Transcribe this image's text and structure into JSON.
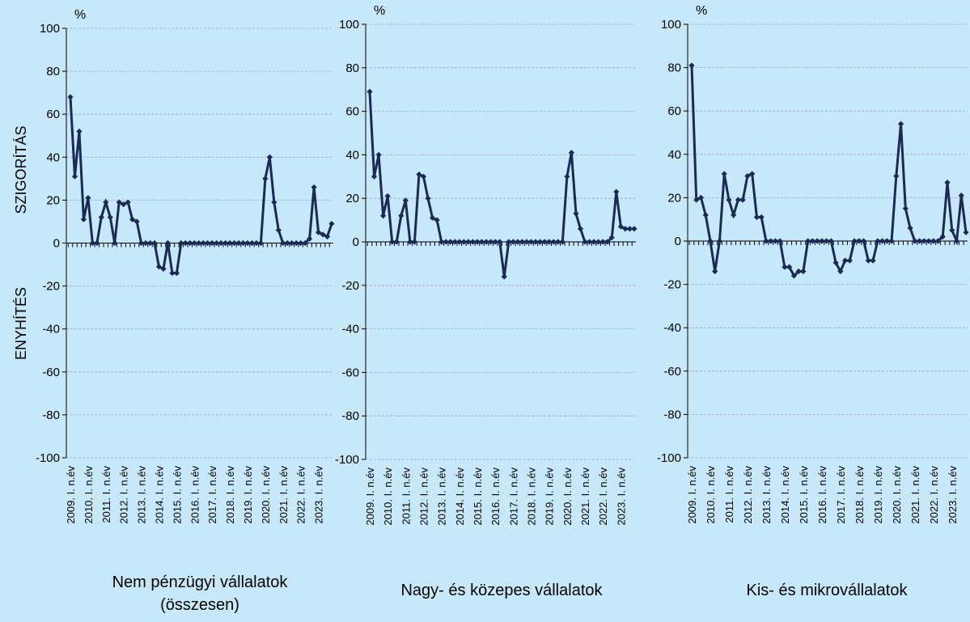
{
  "chart_data": [
    {
      "type": "line",
      "title": "Nem pénzügyi vállalatok (összesen)",
      "y_unit": "%",
      "annotations": [
        "SZIGORÍTÁS",
        "ENYHÍTÉS"
      ],
      "categories": [
        "2009. I. n.év",
        null,
        null,
        null,
        "2010. I. n.év",
        null,
        null,
        null,
        "2011. I. n.év",
        null,
        null,
        null,
        "2012. I. n.év",
        null,
        null,
        null,
        "2013. I. n.év",
        null,
        null,
        null,
        "2014. I. n.év",
        null,
        null,
        null,
        "2015. I. n.év",
        null,
        null,
        null,
        "2016. I. n.év",
        null,
        null,
        null,
        "2017. I. n.év",
        null,
        null,
        null,
        "2018. I. n.év",
        null,
        null,
        null,
        "2019. I. n.év",
        null,
        null,
        null,
        "2020. I. n.év",
        null,
        null,
        null,
        "2021. I. n.év",
        null,
        null,
        null,
        "2022. I. n.év",
        null,
        null,
        null,
        "2023. I. n.év",
        null,
        null,
        null
      ],
      "values": [
        68,
        31,
        52,
        11,
        21,
        0,
        0,
        12,
        19,
        12,
        0,
        19,
        18,
        19,
        11,
        10,
        0,
        0,
        0,
        0,
        -11,
        -12,
        0,
        -14,
        -14,
        0,
        0,
        0,
        0,
        0,
        0,
        0,
        0,
        0,
        0,
        0,
        0,
        0,
        0,
        0,
        0,
        0,
        0,
        0,
        30,
        40,
        19,
        6,
        0,
        0,
        0,
        0,
        0,
        0,
        2,
        26,
        5,
        4,
        3,
        9
      ],
      "color": "#1b2a55",
      "ylim": [
        -100,
        100
      ],
      "yticks": [
        -100,
        -80,
        -60,
        -40,
        -20,
        0,
        20,
        40,
        60,
        80,
        100
      ],
      "grid": true
    },
    {
      "type": "line",
      "title": "Nagy- és közepes vállalatok",
      "y_unit": "%",
      "categories": [
        "2009. I. n.év",
        null,
        null,
        null,
        "2010. I. n.év",
        null,
        null,
        null,
        "2011. I. n.év",
        null,
        null,
        null,
        "2012. I. n.év",
        null,
        null,
        null,
        "2013. I. n.év",
        null,
        null,
        null,
        "2014. I. n.év",
        null,
        null,
        null,
        "2015. I. n.év",
        null,
        null,
        null,
        "2016. I. n.év",
        null,
        null,
        null,
        "2017. I. n.év",
        null,
        null,
        null,
        "2018. I. n.év",
        null,
        null,
        null,
        "2019. I. n.év",
        null,
        null,
        null,
        "2020. I. n.év",
        null,
        null,
        null,
        "2021. I. n.év",
        null,
        null,
        null,
        "2022. I. n.év",
        null,
        null,
        null,
        "2023. I. n.év",
        null,
        null,
        null
      ],
      "values": [
        69,
        30,
        40,
        12,
        21,
        0,
        0,
        12,
        19,
        0,
        0,
        31,
        30,
        20,
        11,
        10,
        0,
        0,
        0,
        0,
        0,
        0,
        0,
        0,
        0,
        0,
        0,
        0,
        0,
        0,
        -16,
        0,
        0,
        0,
        0,
        0,
        0,
        0,
        0,
        0,
        0,
        0,
        0,
        0,
        30,
        41,
        13,
        6,
        0,
        0,
        0,
        0,
        0,
        0,
        2,
        23,
        7,
        6,
        6,
        6
      ],
      "color": "#1b2a55",
      "ylim": [
        -100,
        100
      ],
      "yticks": [
        -100,
        -80,
        -60,
        -40,
        -20,
        0,
        20,
        40,
        60,
        80,
        100
      ],
      "grid": true
    },
    {
      "type": "line",
      "title": "Kis- és mikrovállalatok",
      "y_unit": "%",
      "categories": [
        "2009. I. n.év",
        null,
        null,
        null,
        "2010. I. n.év",
        null,
        null,
        null,
        "2011. I. n.év",
        null,
        null,
        null,
        "2012. I. n.év",
        null,
        null,
        null,
        "2013. I. n.év",
        null,
        null,
        null,
        "2014. I. n.év",
        null,
        null,
        null,
        "2015. I. n.év",
        null,
        null,
        null,
        "2016. I. n.év",
        null,
        null,
        null,
        "2017. I. n.év",
        null,
        null,
        null,
        "2018. I. n.év",
        null,
        null,
        null,
        "2019. I. n.év",
        null,
        null,
        null,
        "2020. I. n.év",
        null,
        null,
        null,
        "2021. I. n.év",
        null,
        null,
        null,
        "2022. I. n.év",
        null,
        null,
        null,
        "2023. I. n.év",
        null,
        null,
        null
      ],
      "values": [
        81,
        19,
        20,
        12,
        0,
        -14,
        0,
        31,
        19,
        12,
        19,
        19,
        30,
        31,
        11,
        11,
        0,
        0,
        0,
        0,
        -12,
        -12,
        -16,
        -14,
        -14,
        0,
        0,
        0,
        0,
        0,
        0,
        -10,
        -14,
        -9,
        -9,
        0,
        0,
        0,
        -9,
        -9,
        0,
        0,
        0,
        0,
        30,
        54,
        15,
        6,
        0,
        0,
        0,
        0,
        0,
        0,
        2,
        27,
        5,
        0,
        21,
        4
      ],
      "color": "#1b2a55",
      "ylim": [
        -100,
        100
      ],
      "yticks": [
        -100,
        -80,
        -60,
        -40,
        -20,
        0,
        20,
        40,
        60,
        80,
        100
      ],
      "grid": true
    }
  ]
}
